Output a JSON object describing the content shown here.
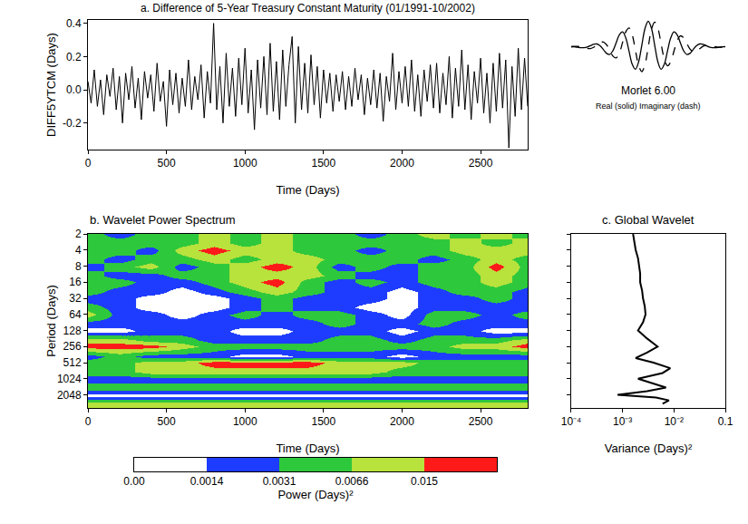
{
  "chart_data": [
    {
      "type": "line",
      "title": "a. Difference of 5-Year Treasury Constant Maturity (01/1991-10/2002)",
      "x_label": "Time (Days)",
      "y_label": "DIFF5YTCM (Days)",
      "color": "#000000",
      "x": [
        0,
        20,
        40,
        60,
        80,
        100,
        120,
        140,
        160,
        180,
        200,
        220,
        240,
        260,
        280,
        300,
        320,
        340,
        360,
        380,
        400,
        420,
        440,
        460,
        480,
        500,
        520,
        540,
        560,
        580,
        600,
        620,
        640,
        660,
        680,
        700,
        720,
        740,
        760,
        780,
        800,
        820,
        840,
        860,
        880,
        900,
        920,
        940,
        960,
        980,
        1000,
        1020,
        1040,
        1060,
        1080,
        1100,
        1120,
        1140,
        1160,
        1180,
        1200,
        1220,
        1240,
        1260,
        1280,
        1300,
        1320,
        1340,
        1360,
        1380,
        1400,
        1420,
        1440,
        1460,
        1480,
        1500,
        1520,
        1540,
        1560,
        1580,
        1600,
        1620,
        1640,
        1660,
        1680,
        1700,
        1720,
        1740,
        1760,
        1780,
        1800,
        1820,
        1840,
        1860,
        1880,
        1900,
        1920,
        1940,
        1960,
        1980,
        2000,
        2020,
        2040,
        2060,
        2080,
        2100,
        2120,
        2140,
        2160,
        2180,
        2200,
        2220,
        2240,
        2260,
        2280,
        2300,
        2320,
        2340,
        2360,
        2380,
        2400,
        2420,
        2440,
        2460,
        2480,
        2500,
        2520,
        2540,
        2560,
        2580,
        2600,
        2620,
        2640,
        2660,
        2680,
        2700,
        2720,
        2740,
        2760,
        2780,
        2800
      ],
      "values": [
        0.05,
        -0.08,
        0.12,
        -0.1,
        0.06,
        -0.15,
        0.09,
        -0.04,
        0.13,
        -0.12,
        0.08,
        -0.2,
        0.1,
        -0.06,
        0.14,
        -0.11,
        0.07,
        -0.18,
        0.11,
        -0.05,
        0.09,
        -0.13,
        0.16,
        -0.07,
        0.05,
        -0.22,
        0.12,
        -0.09,
        0.1,
        -0.14,
        0.07,
        -0.1,
        0.18,
        -0.12,
        0.08,
        -0.06,
        0.15,
        -0.17,
        0.11,
        -0.08,
        0.4,
        -0.12,
        0.14,
        -0.2,
        0.22,
        -0.1,
        0.13,
        -0.16,
        0.19,
        -0.09,
        0.25,
        -0.14,
        0.12,
        -0.24,
        0.18,
        -0.11,
        0.2,
        -0.15,
        0.28,
        -0.13,
        0.17,
        -0.18,
        0.24,
        -0.1,
        0.15,
        0.32,
        -0.2,
        0.26,
        -0.12,
        0.16,
        -0.14,
        0.21,
        -0.09,
        0.14,
        -0.17,
        0.12,
        -0.08,
        0.1,
        -0.13,
        0.09,
        -0.07,
        0.11,
        -0.12,
        0.08,
        -0.1,
        0.13,
        -0.06,
        0.09,
        -0.15,
        0.07,
        -0.09,
        0.12,
        -0.11,
        0.1,
        -0.19,
        0.08,
        -0.07,
        0.22,
        -0.12,
        0.11,
        -0.08,
        0.14,
        -0.1,
        0.18,
        -0.13,
        0.09,
        -0.16,
        0.12,
        -0.07,
        0.15,
        -0.11,
        0.16,
        -0.14,
        0.1,
        -0.09,
        0.2,
        -0.17,
        0.13,
        -0.1,
        0.24,
        -0.12,
        0.15,
        -0.18,
        0.11,
        -0.08,
        0.19,
        -0.14,
        0.1,
        -0.2,
        0.16,
        -0.13,
        0.22,
        -0.11,
        0.18,
        -0.35,
        0.14,
        -0.16,
        0.25,
        -0.12,
        0.19,
        -0.1
      ],
      "xlim": [
        0,
        2800
      ],
      "xticks": [
        0,
        500,
        1000,
        1500,
        2000,
        2500
      ],
      "ylim": [
        -0.36,
        0.42
      ],
      "yticks": [
        -0.2,
        {
          "value": 0,
          "label": "0.0"
        },
        0.2,
        0.4
      ],
      "grid": false
    },
    {
      "type": "line",
      "title": "Morlet 6.00",
      "subtitle": "Real (solid) Imaginary (dash)",
      "tick_labels": false,
      "x": [
        -3,
        -2.875,
        -2.75,
        -2.625,
        -2.5,
        -2.375,
        -2.25,
        -2.125,
        -2,
        -1.875,
        -1.75,
        -1.625,
        -1.5,
        -1.375,
        -1.25,
        -1.125,
        -1,
        -0.875,
        -0.75,
        -0.625,
        -0.5,
        -0.375,
        -0.25,
        -0.125,
        0,
        0.125,
        0.25,
        0.375,
        0.5,
        0.625,
        0.75,
        0.875,
        1,
        1.125,
        1.25,
        1.375,
        1.5,
        1.625,
        1.75,
        1.875,
        2,
        2.125,
        2.25,
        2.375,
        2.5,
        2.625,
        2.75,
        2.875,
        3
      ],
      "xlim": [
        -3,
        3
      ],
      "ylim": [
        -1,
        1.05
      ],
      "series": [
        {
          "name": "Real",
          "color": "#000000",
          "line_style": "solid",
          "values": [
            0.007,
            0.0,
            -0.016,
            -0.032,
            -0.033,
            -0.007,
            0.048,
            0.103,
            0.114,
            0.043,
            -0.103,
            -0.253,
            -0.296,
            -0.15,
            0.159,
            0.474,
            0.583,
            0.349,
            -0.159,
            -0.675,
            -0.873,
            -0.585,
            0.069,
            0.726,
            1.0,
            0.726,
            0.069,
            -0.585,
            -0.873,
            -0.675,
            -0.159,
            0.349,
            0.583,
            0.474,
            0.159,
            -0.15,
            -0.296,
            -0.253,
            -0.103,
            0.043,
            0.114,
            0.103,
            0.048,
            -0.007,
            -0.033,
            -0.032,
            -0.016,
            0.0,
            0.007
          ]
        },
        {
          "name": "Imaginary",
          "color": "#000000",
          "line_style": "dash",
          "values": [
            0.008,
            0.016,
            0.016,
            0.001,
            -0.029,
            -0.06,
            -0.064,
            -0.019,
            0.072,
            0.166,
            0.19,
            0.086,
            -0.134,
            -0.359,
            -0.43,
            -0.239,
            0.169,
            0.586,
            0.738,
            0.471,
            -0.124,
            -0.725,
            -0.966,
            -0.677,
            0.0,
            0.677,
            0.966,
            0.725,
            0.124,
            -0.471,
            -0.738,
            -0.586,
            -0.169,
            0.239,
            0.43,
            0.359,
            0.134,
            -0.086,
            -0.19,
            -0.166,
            -0.072,
            0.019,
            0.064,
            0.06,
            0.029,
            -0.001,
            -0.016,
            -0.016,
            -0.008
          ]
        }
      ]
    },
    {
      "type": "heatmap",
      "title": "b. Wavelet Power Spectrum",
      "x_label": "Time (Days)",
      "y_label": "Period (Days)",
      "log": "y",
      "x": [
        0,
        200,
        400,
        600,
        800,
        1000,
        1200,
        1400,
        1600,
        1800,
        2000,
        2200,
        2400,
        2600,
        2800
      ],
      "y": [
        2,
        3,
        4,
        6,
        8,
        12,
        16,
        24,
        32,
        48,
        64,
        96,
        128,
        192,
        256,
        384,
        512,
        768,
        1024,
        1536,
        2048,
        3000,
        3600
      ],
      "cells": [
        [
          0.004,
          0.003,
          0.005,
          0.006,
          0.009,
          0.005,
          0.007,
          0.004,
          0.006,
          0.003,
          0.005,
          0.008,
          0.005,
          0.007,
          0.006
        ],
        [
          0.005,
          0.004,
          0.006,
          0.005,
          0.012,
          0.006,
          0.008,
          0.005,
          0.004,
          0.005,
          0.004,
          0.006,
          0.009,
          0.006,
          0.008
        ],
        [
          0.004,
          0.006,
          0.003,
          0.008,
          0.018,
          0.007,
          0.01,
          0.006,
          0.005,
          0.003,
          0.006,
          0.005,
          0.007,
          0.012,
          0.007
        ],
        [
          0.005,
          0.003,
          0.004,
          0.005,
          0.008,
          0.004,
          0.012,
          0.008,
          0.004,
          0.006,
          0.004,
          0.003,
          0.006,
          0.01,
          0.004
        ],
        [
          0.003,
          0.005,
          0.007,
          0.003,
          0.006,
          0.009,
          0.016,
          0.007,
          0.003,
          0.004,
          0.002,
          0.005,
          0.004,
          0.017,
          0.006
        ],
        [
          0.004,
          0.003,
          0.002,
          0.004,
          0.005,
          0.007,
          0.011,
          0.009,
          0.004,
          0.003,
          0.003,
          0.004,
          0.005,
          0.008,
          0.005
        ],
        [
          0.005,
          0.004,
          0.003,
          0.002,
          0.004,
          0.008,
          0.017,
          0.006,
          0.003,
          0.005,
          0.002,
          0.004,
          0.006,
          0.007,
          0.004
        ],
        [
          0.004,
          0.003,
          0.002,
          0.001,
          0.003,
          0.005,
          0.008,
          0.004,
          0.002,
          0.003,
          0.001,
          0.002,
          0.004,
          0.005,
          0.003
        ],
        [
          0.003,
          0.002,
          0.001,
          0.0008,
          0.001,
          0.003,
          0.005,
          0.003,
          0.002,
          0.002,
          0.0008,
          0.002,
          0.003,
          0.004,
          0.002
        ],
        [
          0.005,
          0.002,
          0.001,
          0.0006,
          0.001,
          0.002,
          0.004,
          0.003,
          0.002,
          0.001,
          0.0007,
          0.003,
          0.002,
          0.003,
          0.003
        ],
        [
          0.008,
          0.002,
          0.0015,
          0.001,
          0.0015,
          0.004,
          0.003,
          0.004,
          0.005,
          0.002,
          0.001,
          0.004,
          0.005,
          0.002,
          0.004
        ],
        [
          0.003,
          0.0015,
          0.002,
          0.0015,
          0.002,
          0.003,
          0.002,
          0.002,
          0.004,
          0.002,
          0.0015,
          0.004,
          0.003,
          0.0015,
          0.002
        ],
        [
          0.0012,
          0.001,
          0.0016,
          0.002,
          0.0015,
          0.001,
          0.0012,
          0.0018,
          0.002,
          0.0016,
          0.0012,
          0.0018,
          0.0015,
          0.001,
          0.0012
        ],
        [
          0.008,
          0.009,
          0.006,
          0.004,
          0.003,
          0.002,
          0.0025,
          0.003,
          0.0035,
          0.004,
          0.003,
          0.0035,
          0.004,
          0.006,
          0.007
        ],
        [
          0.016,
          0.022,
          0.017,
          0.008,
          0.005,
          0.004,
          0.004,
          0.0045,
          0.005,
          0.005,
          0.004,
          0.005,
          0.007,
          0.013,
          0.017
        ],
        [
          0.003,
          0.004,
          0.003,
          0.002,
          0.0015,
          0.001,
          0.0012,
          0.0015,
          0.0015,
          0.002,
          0.0012,
          0.0015,
          0.002,
          0.003,
          0.003
        ],
        [
          0.005,
          0.006,
          0.007,
          0.012,
          0.016,
          0.017,
          0.016,
          0.015,
          0.012,
          0.009,
          0.007,
          0.006,
          0.005,
          0.004,
          0.005
        ],
        [
          0.004,
          0.005,
          0.007,
          0.01,
          0.012,
          0.013,
          0.012,
          0.011,
          0.01,
          0.008,
          0.006,
          0.005,
          0.004,
          0.004,
          0.004
        ],
        [
          0.0018,
          0.002,
          0.0022,
          0.0025,
          0.0025,
          0.0024,
          0.0022,
          0.002,
          0.0018,
          0.0017,
          0.0017,
          0.0018,
          0.002,
          0.002,
          0.0019
        ],
        [
          0.004,
          0.0042,
          0.0045,
          0.0048,
          0.005,
          0.005,
          0.0048,
          0.0045,
          0.0042,
          0.004,
          0.004,
          0.0042,
          0.0045,
          0.0045,
          0.0043
        ],
        [
          0.0009,
          0.001,
          0.001,
          0.0011,
          0.0011,
          0.001,
          0.001,
          0.0009,
          0.0009,
          0.0009,
          0.001,
          0.001,
          0.0011,
          0.001,
          0.001
        ],
        [
          0.008,
          0.0085,
          0.009,
          0.0095,
          0.01,
          0.01,
          0.0095,
          0.009,
          0.0085,
          0.008,
          0.008,
          0.0085,
          0.009,
          0.009,
          0.0085
        ],
        [
          0.009,
          0.009,
          0.0095,
          0.01,
          0.011,
          0.011,
          0.01,
          0.0095,
          0.009,
          0.0085,
          0.0085,
          0.009,
          0.0095,
          0.0095,
          0.009
        ]
      ],
      "xlim": [
        0,
        2800
      ],
      "xticks": [
        0,
        500,
        1000,
        1500,
        2000,
        2500
      ],
      "ylim": [
        3600,
        2
      ],
      "yticks": [
        2,
        4,
        8,
        16,
        32,
        64,
        128,
        256,
        512,
        1024,
        2048
      ],
      "colorbar": {
        "title": "Power (Days)²",
        "ticks": [
          {
            "value": 0,
            "label": "0.00"
          },
          0.0014,
          0.0031,
          0.0066,
          0.015
        ],
        "colors": [
          "#ffffff",
          "#1e3cff",
          "#2ec83c",
          "#b8e23c",
          "#ff1a1a"
        ]
      },
      "grid": false
    },
    {
      "type": "line",
      "title": "c. Global Wavelet",
      "x_label": "Variance (Days)²",
      "color": "#000000",
      "log": true,
      "tick_labels": "x",
      "x": [
        0.0016,
        0.0017,
        0.0018,
        0.002,
        0.0021,
        0.0022,
        0.0022,
        0.0024,
        0.0025,
        0.0027,
        0.0028,
        0.0025,
        0.002,
        0.003,
        0.0048,
        0.003,
        0.0018,
        0.004,
        0.0085,
        0.006,
        0.002,
        0.004,
        0.007,
        0.003,
        0.0008,
        0.0045,
        0.008,
        0.006
      ],
      "y": [
        2,
        2.8,
        4,
        5.7,
        8,
        11,
        16,
        23,
        32,
        45,
        64,
        90,
        128,
        181,
        256,
        330,
        420,
        512,
        650,
        800,
        1024,
        1250,
        1500,
        1750,
        2048,
        2300,
        2600,
        3000
      ],
      "xlim": [
        0.0001,
        0.1
      ],
      "xticks": [
        {
          "value": 0.0001,
          "label": "10⁻⁴"
        },
        {
          "value": 0.001,
          "label": "10⁻³"
        },
        {
          "value": 0.01,
          "label": "10⁻²"
        },
        0.1
      ],
      "ylim": [
        3600,
        2
      ],
      "yticks": [
        2,
        4,
        8,
        16,
        32,
        64,
        128,
        256,
        512,
        1024,
        2048
      ],
      "grid": false
    }
  ]
}
